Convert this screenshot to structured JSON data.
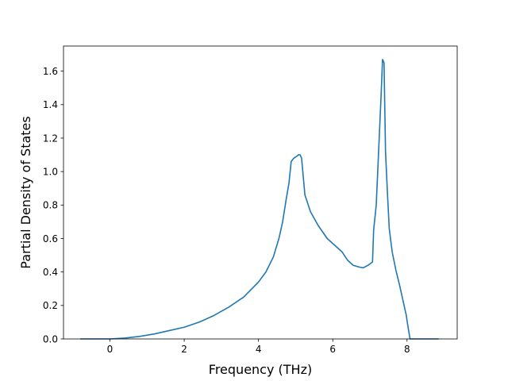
{
  "chart_data": {
    "type": "line",
    "title": "",
    "xlabel": "Frequency (THz)",
    "ylabel": "Partial Density of States",
    "xlim": [
      -1.25,
      9.35
    ],
    "ylim": [
      0.0,
      1.75
    ],
    "xticks": [
      0,
      2,
      4,
      6,
      8
    ],
    "xtick_labels": [
      "0",
      "2",
      "4",
      "6",
      "8"
    ],
    "yticks": [
      0.0,
      0.2,
      0.4,
      0.6,
      0.8,
      1.0,
      1.2,
      1.4,
      1.6
    ],
    "ytick_labels": [
      "0.0",
      "0.2",
      "0.4",
      "0.6",
      "0.8",
      "1.0",
      "1.2",
      "1.4",
      "1.6"
    ],
    "grid": false,
    "legend": "none",
    "line_color": "#1f77b4",
    "series": [
      {
        "x": [
          -0.8,
          -0.4,
          0.0,
          0.4,
          0.8,
          1.2,
          1.6,
          2.0,
          2.4,
          2.8,
          3.2,
          3.6,
          4.0,
          4.2,
          4.4,
          4.55,
          4.65,
          4.75,
          4.82,
          4.88,
          4.95,
          5.02,
          5.08,
          5.12,
          5.16,
          5.25,
          5.4,
          5.6,
          5.85,
          6.1,
          6.25,
          6.4,
          6.55,
          6.7,
          6.82,
          6.95,
          7.07,
          7.1,
          7.17,
          7.25,
          7.3,
          7.34,
          7.38,
          7.42,
          7.47,
          7.52,
          7.6,
          7.7,
          7.8,
          7.9,
          7.98,
          8.02,
          8.08,
          8.4,
          8.85
        ],
        "y": [
          0.0,
          0.0,
          0.0,
          0.005,
          0.015,
          0.03,
          0.05,
          0.07,
          0.1,
          0.14,
          0.19,
          0.25,
          0.34,
          0.4,
          0.49,
          0.6,
          0.7,
          0.84,
          0.93,
          1.06,
          1.08,
          1.09,
          1.1,
          1.1,
          1.08,
          0.86,
          0.76,
          0.68,
          0.6,
          0.55,
          0.52,
          0.47,
          0.44,
          0.43,
          0.425,
          0.44,
          0.46,
          0.65,
          0.8,
          1.2,
          1.45,
          1.67,
          1.65,
          1.12,
          0.88,
          0.66,
          0.52,
          0.41,
          0.32,
          0.22,
          0.14,
          0.08,
          0.0,
          0.0,
          0.0
        ]
      }
    ]
  }
}
